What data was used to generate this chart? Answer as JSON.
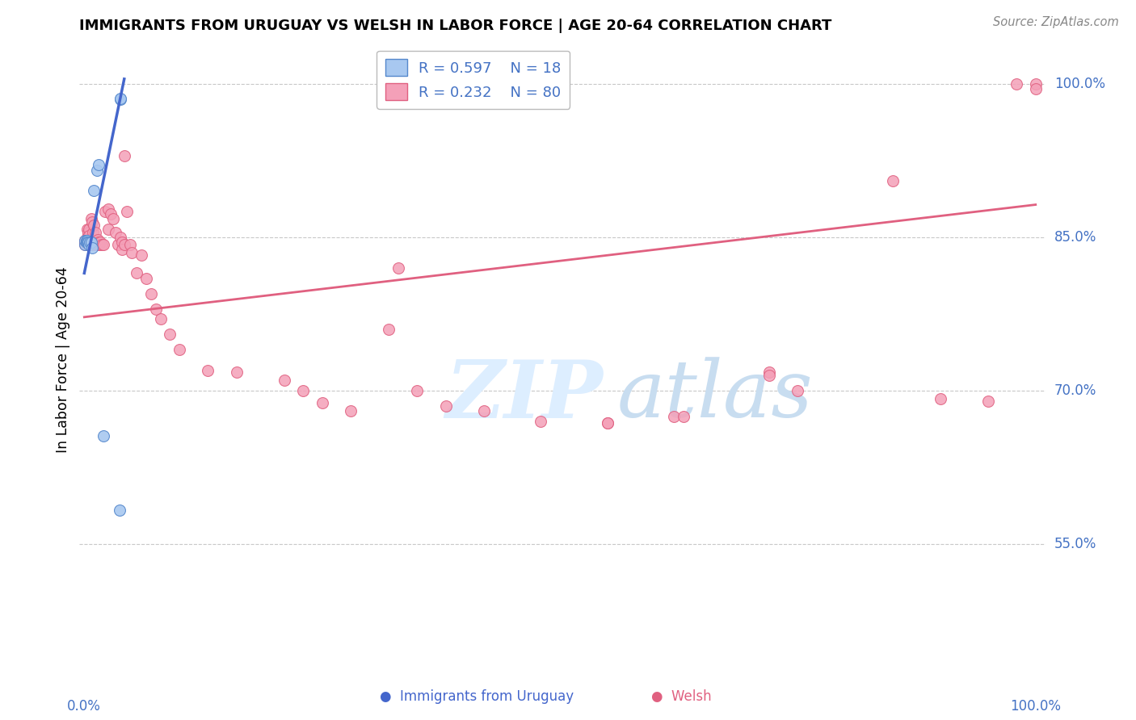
{
  "title": "IMMIGRANTS FROM URUGUAY VS WELSH IN LABOR FORCE | AGE 20-64 CORRELATION CHART",
  "source": "Source: ZipAtlas.com",
  "ylabel": "In Labor Force | Age 20-64",
  "ytick_values": [
    1.0,
    0.85,
    0.7,
    0.55
  ],
  "ytick_labels": [
    "100.0%",
    "85.0%",
    "70.0%",
    "55.0%"
  ],
  "xlim": [
    0.0,
    1.0
  ],
  "ylim": [
    0.42,
    1.04
  ],
  "watermark_text": "ZIPatlas",
  "uruguay_color": "#a8c8f0",
  "welsh_color": "#f4a0b8",
  "uruguay_edge_color": "#5588cc",
  "welsh_edge_color": "#e06080",
  "uruguay_line_color": "#4466cc",
  "welsh_line_color": "#e06080",
  "marker_size": 100,
  "uruguay_points_x": [
    0.001,
    0.001,
    0.002,
    0.002,
    0.003,
    0.003,
    0.004,
    0.005,
    0.006,
    0.007,
    0.008,
    0.01,
    0.013,
    0.015,
    0.02,
    0.037,
    0.038,
    0.038
  ],
  "uruguay_points_y": [
    0.843,
    0.847,
    0.845,
    0.847,
    0.847,
    0.845,
    0.845,
    0.843,
    0.845,
    0.845,
    0.84,
    0.896,
    0.916,
    0.921,
    0.656,
    0.583,
    0.985,
    0.986
  ],
  "welsh_points_x": [
    0.001,
    0.001,
    0.001,
    0.002,
    0.002,
    0.003,
    0.003,
    0.003,
    0.004,
    0.004,
    0.005,
    0.005,
    0.005,
    0.006,
    0.006,
    0.007,
    0.007,
    0.008,
    0.008,
    0.009,
    0.009,
    0.01,
    0.01,
    0.011,
    0.012,
    0.013,
    0.014,
    0.015,
    0.016,
    0.017,
    0.018,
    0.02,
    0.022,
    0.025,
    0.025,
    0.028,
    0.03,
    0.033,
    0.035,
    0.038,
    0.04,
    0.04,
    0.042,
    0.042,
    0.045,
    0.048,
    0.05,
    0.055,
    0.06,
    0.065,
    0.07,
    0.075,
    0.08,
    0.09,
    0.1,
    0.13,
    0.16,
    0.21,
    0.23,
    0.25,
    0.28,
    0.32,
    0.35,
    0.38,
    0.42,
    0.48,
    0.55,
    0.62,
    0.72,
    0.75,
    0.85,
    0.9,
    0.95,
    1.0,
    0.98,
    1.0,
    0.72,
    0.63,
    0.55,
    0.33
  ],
  "welsh_points_y": [
    0.843,
    0.847,
    0.845,
    0.848,
    0.845,
    0.858,
    0.85,
    0.843,
    0.855,
    0.843,
    0.858,
    0.852,
    0.843,
    0.848,
    0.843,
    0.868,
    0.845,
    0.865,
    0.843,
    0.855,
    0.845,
    0.862,
    0.843,
    0.845,
    0.855,
    0.843,
    0.848,
    0.845,
    0.843,
    0.845,
    0.843,
    0.843,
    0.875,
    0.878,
    0.858,
    0.873,
    0.868,
    0.855,
    0.843,
    0.85,
    0.845,
    0.838,
    0.843,
    0.93,
    0.875,
    0.843,
    0.835,
    0.815,
    0.833,
    0.81,
    0.795,
    0.78,
    0.77,
    0.755,
    0.74,
    0.72,
    0.718,
    0.71,
    0.7,
    0.688,
    0.68,
    0.76,
    0.7,
    0.685,
    0.68,
    0.67,
    0.668,
    0.675,
    0.718,
    0.7,
    0.905,
    0.692,
    0.69,
    1.0,
    1.0,
    0.995,
    0.715,
    0.675,
    0.668,
    0.82
  ],
  "uru_line_x": [
    0.0,
    0.042
  ],
  "uru_line_y": [
    0.815,
    1.005
  ],
  "welsh_line_x": [
    0.0,
    1.0
  ],
  "welsh_line_y": [
    0.772,
    0.882
  ]
}
